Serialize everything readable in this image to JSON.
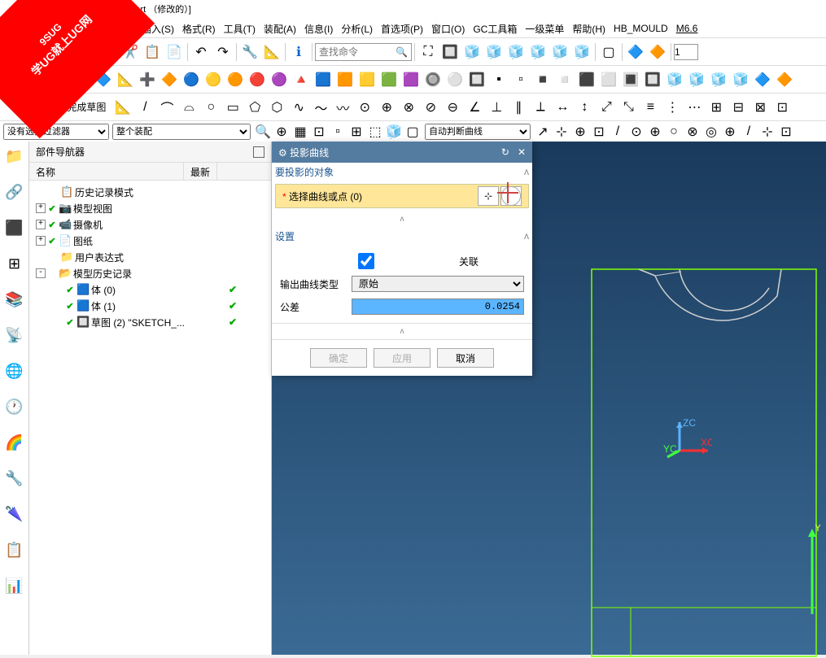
{
  "watermark": {
    "line1": "9SUG",
    "line2": "学UG就上UG网"
  },
  "title": "ujiao.prt （修改的）]",
  "menu": [
    "视图(V)",
    "插入(S)",
    "格式(R)",
    "工具(T)",
    "装配(A)",
    "信息(I)",
    "分析(L)",
    "首选项(P)",
    "窗口(O)",
    "GC工具箱",
    "一级菜单",
    "帮助(H)",
    "HB_MOULD",
    "M6.6"
  ],
  "search_placeholder": "查找命令",
  "filter": {
    "sel1": "没有选择过滤器",
    "sel2": "整个装配",
    "sel3": "自动判断曲线"
  },
  "nav": {
    "title": "部件导航器",
    "cols": [
      "名称",
      "最新"
    ],
    "items": [
      {
        "indent": 0,
        "exp": "",
        "chk": false,
        "ico": "📋",
        "label": "历史记录模式",
        "latest": false
      },
      {
        "indent": 0,
        "exp": "+",
        "chk": true,
        "ico": "📷",
        "label": "模型视图",
        "latest": false
      },
      {
        "indent": 0,
        "exp": "+",
        "chk": true,
        "ico": "📹",
        "label": "摄像机",
        "latest": false
      },
      {
        "indent": 0,
        "exp": "+",
        "chk": true,
        "ico": "📄",
        "label": "图纸",
        "latest": false
      },
      {
        "indent": 0,
        "exp": "",
        "chk": false,
        "ico": "📁",
        "label": "用户表达式",
        "latest": false
      },
      {
        "indent": 0,
        "exp": "-",
        "chk": false,
        "ico": "📂",
        "label": "模型历史记录",
        "latest": false
      },
      {
        "indent": 1,
        "exp": "",
        "chk": true,
        "ico": "🟦",
        "label": "体 (0)",
        "latest": true
      },
      {
        "indent": 1,
        "exp": "",
        "chk": true,
        "ico": "🟦",
        "label": "体 (1)",
        "latest": true
      },
      {
        "indent": 1,
        "exp": "",
        "chk": true,
        "ico": "🔲",
        "label": "草图 (2) \"SKETCH_...",
        "latest": true
      }
    ]
  },
  "sketch_btn": "完成草图",
  "dialog": {
    "title": "投影曲线",
    "section1": "要投影的对象",
    "sel_label": "选择曲线或点 (0)",
    "section2": "设置",
    "assoc": "关联",
    "output_type_label": "输出曲线类型",
    "output_type_value": "原始",
    "tol_label": "公差",
    "tol_value": "0.0254",
    "btn_ok": "确定",
    "btn_apply": "应用",
    "btn_cancel": "取消"
  },
  "axes": {
    "x": "XC",
    "y": "YC",
    "z": "ZC"
  },
  "colors": {
    "viewport_top": "#1a3a5c",
    "viewport_bot": "#3a6a94",
    "dialog_hdr": "#547ca0",
    "section_hdr": "#1a5490",
    "sel_bg": "#ffe699",
    "tol_bg": "#5bb5ff",
    "sketch_outline": "#7fff00",
    "arc": "#d0d0d0"
  }
}
